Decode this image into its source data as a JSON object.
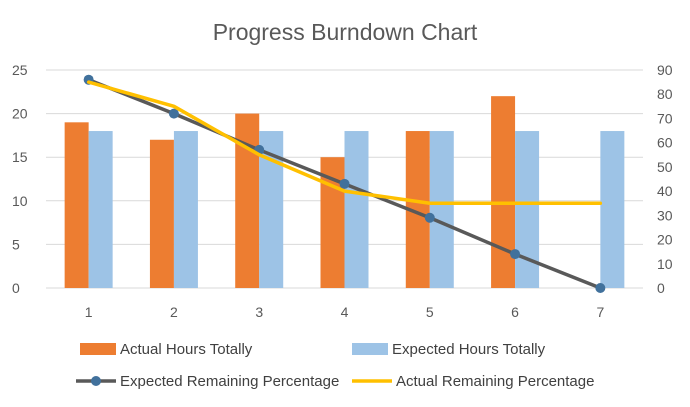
{
  "chart_data": {
    "type": "bar",
    "title": "Progress Burndown Chart",
    "categories": [
      "1",
      "2",
      "3",
      "4",
      "5",
      "6",
      "7"
    ],
    "y_left": {
      "ylim": [
        0,
        25
      ],
      "ticks": [
        "0",
        "5",
        "10",
        "15",
        "20",
        "25"
      ]
    },
    "y_right": {
      "ylim": [
        0,
        90
      ],
      "ticks": [
        "0",
        "10",
        "20",
        "30",
        "40",
        "50",
        "60",
        "70",
        "80",
        "90"
      ]
    },
    "gridlines": true,
    "legend_position": "bottom",
    "series": [
      {
        "name": "Actual Hours Totally",
        "type": "bar",
        "axis": "left",
        "color": "#ED7D31",
        "values": [
          19,
          17,
          20,
          15,
          18,
          22,
          null
        ]
      },
      {
        "name": "Expected Hours Totally",
        "type": "bar",
        "axis": "left",
        "color": "#9DC3E6",
        "values": [
          18,
          18,
          18,
          18,
          18,
          18,
          18
        ]
      },
      {
        "name": "Expected Remaining Percentage",
        "type": "line",
        "marker": "circle",
        "axis": "right",
        "color": "#595959",
        "marker_color": "#41719C",
        "values": [
          86,
          72,
          57,
          43,
          29,
          14,
          0
        ]
      },
      {
        "name": "Actual Remaining Percentage",
        "type": "line",
        "axis": "right",
        "color": "#FFC000",
        "values": [
          85,
          75,
          55,
          40,
          35,
          35,
          35
        ]
      }
    ]
  }
}
